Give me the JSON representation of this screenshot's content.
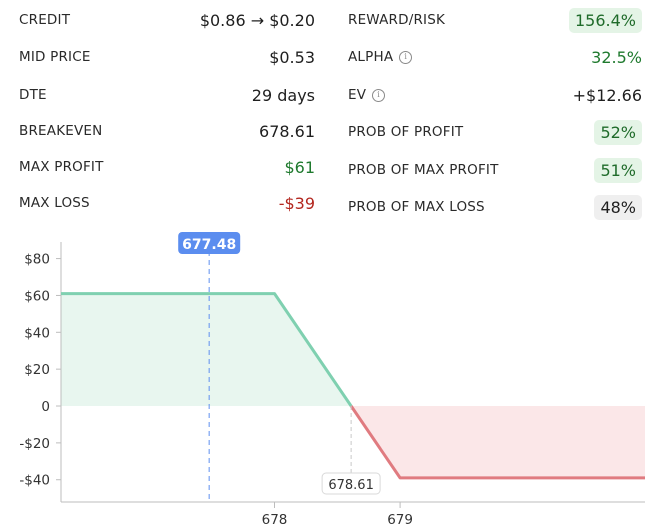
{
  "stats_left": [
    {
      "label": "CREDIT",
      "value": "$0.86 → $0.20",
      "style": "plain"
    },
    {
      "label": "MID PRICE",
      "value": "$0.53",
      "style": "plain"
    },
    {
      "label": "DTE",
      "value": "29 days",
      "style": "plain"
    },
    {
      "label": "BREAKEVEN",
      "value": "678.61",
      "style": "plain"
    },
    {
      "label": "MAX PROFIT",
      "value": "$61",
      "style": "pos"
    },
    {
      "label": "MAX LOSS",
      "value": "-$39",
      "style": "neg"
    }
  ],
  "stats_right": [
    {
      "label": "REWARD/RISK",
      "value": "156.4%",
      "style": "pill-green",
      "info": false
    },
    {
      "label": "ALPHA",
      "value": "32.5%",
      "style": "pos",
      "info": true
    },
    {
      "label": "EV",
      "value": "+$12.66",
      "style": "plain",
      "info": true
    },
    {
      "label": "PROB OF PROFIT",
      "value": "52%",
      "style": "pill-green",
      "info": false
    },
    {
      "label": "PROB OF MAX PROFIT",
      "value": "51%",
      "style": "pill-green",
      "info": false
    },
    {
      "label": "PROB OF MAX LOSS",
      "value": "48%",
      "style": "pill-grey",
      "info": false
    }
  ],
  "info_glyph": "i",
  "colors": {
    "profit_line": "#7fd0b0",
    "profit_fill": "#e8f6ef",
    "loss_line": "#e07b80",
    "loss_fill": "#fbe7e8",
    "current_marker": "#5b8def",
    "breakeven_guide": "#c8c8c8"
  },
  "chart_data": {
    "type": "line",
    "title": "",
    "xlabel": "",
    "ylabel": "",
    "x_ticks": [
      678,
      679
    ],
    "y_ticks": [
      {
        "value": 80,
        "label": "$80"
      },
      {
        "value": 60,
        "label": "$60"
      },
      {
        "value": 40,
        "label": "$40"
      },
      {
        "value": 20,
        "label": "$20"
      },
      {
        "value": 0,
        "label": "0"
      },
      {
        "value": -20,
        "label": "-$20"
      },
      {
        "value": -40,
        "label": "-$40"
      }
    ],
    "xlim": [
      676.3,
      680.95
    ],
    "ylim": [
      -51,
      89
    ],
    "series": [
      {
        "points": [
          [
            676.3,
            61
          ],
          [
            678.0,
            61
          ],
          [
            678.61,
            0
          ],
          [
            679.0,
            -39
          ],
          [
            680.95,
            -39
          ]
        ]
      }
    ],
    "current_price": {
      "x": 677.48,
      "label": "677.48"
    },
    "breakeven": {
      "x": 678.61,
      "label": "678.61"
    },
    "grid": false
  }
}
